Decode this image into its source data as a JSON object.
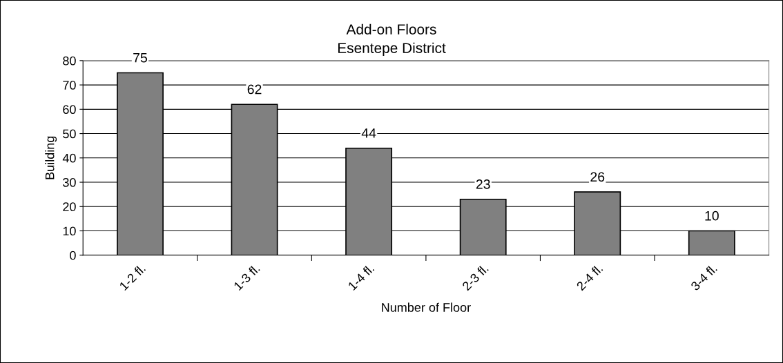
{
  "chart_data": {
    "type": "bar",
    "title": "Add-on Floors\nEsentepe District",
    "xlabel": "Number of Floor",
    "ylabel": "Building",
    "categories": [
      "1-2 fl.",
      "1-3 fl.",
      "1-4 fl.",
      "2-3 fl.",
      "2-4 fl.",
      "3-4 fl."
    ],
    "values": [
      75,
      62,
      44,
      23,
      26,
      10
    ],
    "color": "#808080",
    "ylim": [
      0,
      80
    ],
    "yticks": [
      0,
      10,
      20,
      30,
      40,
      50,
      60,
      70,
      80
    ],
    "grid": "y",
    "data_labels": true
  }
}
